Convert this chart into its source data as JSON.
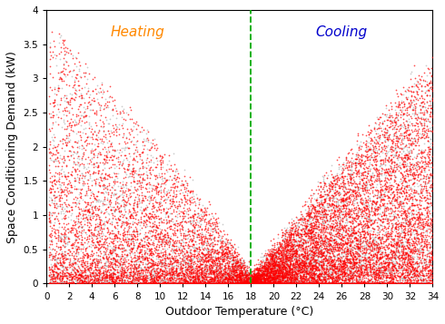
{
  "title": "",
  "xlabel": "Outdoor Temperature (°C)",
  "ylabel": "Space Conditioning Demand (kW)",
  "xlim": [
    0,
    34
  ],
  "ylim": [
    0,
    4.0
  ],
  "xticks": [
    0,
    2,
    4,
    6,
    8,
    10,
    12,
    14,
    16,
    18,
    20,
    22,
    24,
    26,
    28,
    30,
    32,
    34
  ],
  "yticks": [
    0.0,
    0.5,
    1.0,
    1.5,
    2.0,
    2.5,
    3.0,
    3.5,
    4.0
  ],
  "vline_x": 18,
  "vline_color": "#00aa00",
  "heating_label": "Heating",
  "heating_x": 8,
  "heating_y": 3.78,
  "heating_color": "#ff8800",
  "cooling_label": "Cooling",
  "cooling_x": 26,
  "cooling_y": 3.78,
  "cooling_color": "#0000cc",
  "dot_color_red": "#ff0000",
  "dot_color_gray": "#aaaaaa",
  "dot_size": 1.5,
  "n_points": 20000,
  "random_seed": 7,
  "background_color": "#ffffff",
  "axis_label_fontsize": 9,
  "annotation_fontsize": 11
}
